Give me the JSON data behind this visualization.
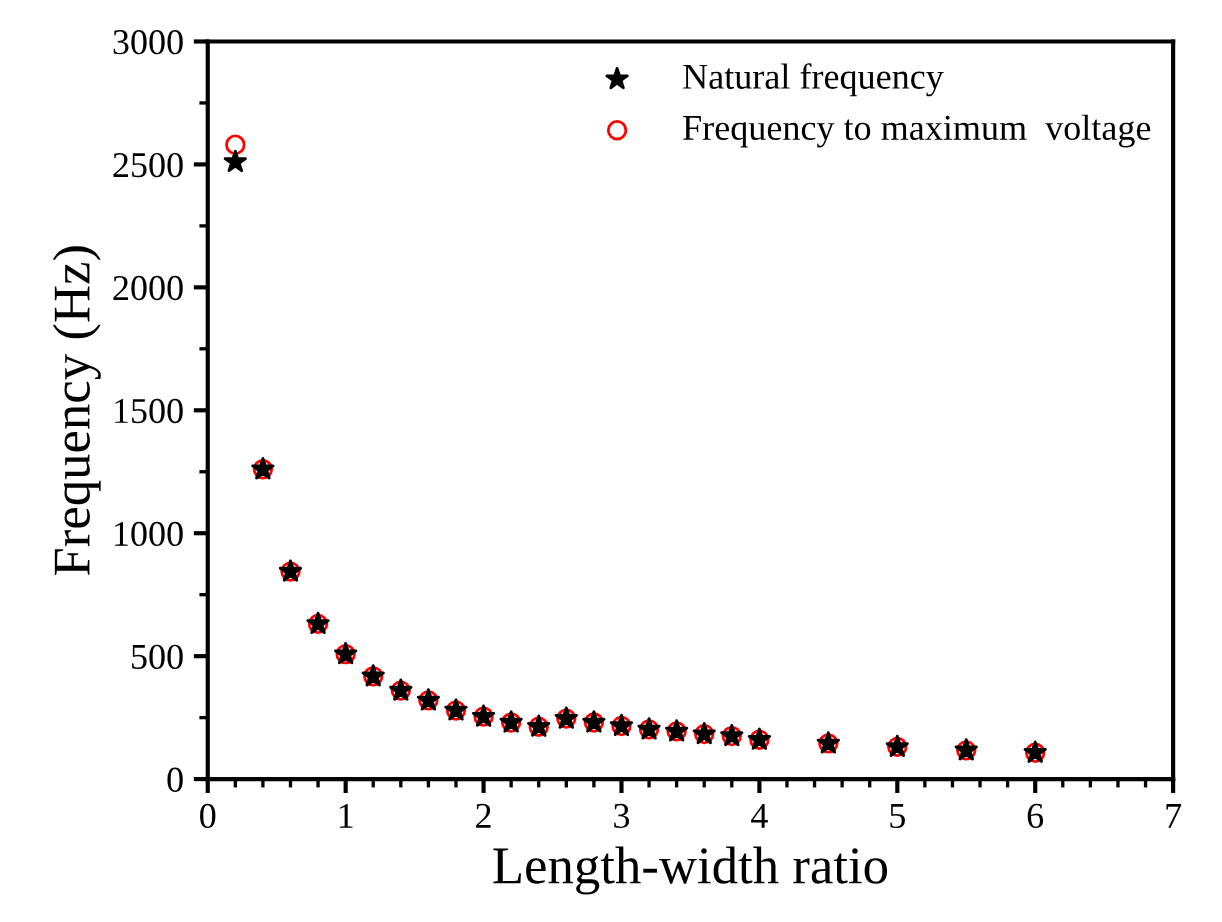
{
  "chart_data": {
    "type": "scatter",
    "xlabel": "Length-width ratio",
    "ylabel": "Frequency (Hz)",
    "x": [
      0.2,
      0.4,
      0.6,
      0.8,
      1.0,
      1.2,
      1.4,
      1.6,
      1.8,
      2.0,
      2.2,
      2.4,
      2.6,
      2.8,
      3.0,
      3.2,
      3.4,
      3.6,
      3.8,
      4.0,
      4.5,
      5.0,
      5.5,
      6.0
    ],
    "series": [
      {
        "name": "Natural frequency",
        "color": "#000000",
        "marker": "star",
        "values": [
          2510,
          1260,
          844,
          631,
          508,
          418,
          360,
          320,
          279,
          254,
          230,
          213,
          246,
          230,
          216,
          202,
          194,
          183,
          175,
          160,
          145,
          131,
          117,
          107
        ]
      },
      {
        "name": "Frequency to maximum  voltage",
        "color": "#ff0000",
        "marker": "circle",
        "values": [
          2580,
          1260,
          844,
          631,
          508,
          418,
          360,
          320,
          279,
          254,
          230,
          213,
          246,
          230,
          216,
          202,
          194,
          183,
          175,
          160,
          145,
          131,
          117,
          107
        ]
      }
    ],
    "xlim": [
      0,
      7
    ],
    "xticks": [
      0,
      1,
      2,
      3,
      4,
      5,
      6,
      7
    ],
    "ylim": [
      0,
      3000
    ],
    "yticks": [
      0,
      500,
      1000,
      1500,
      2000,
      2500,
      3000
    ],
    "legend": "top right",
    "grid": false
  }
}
